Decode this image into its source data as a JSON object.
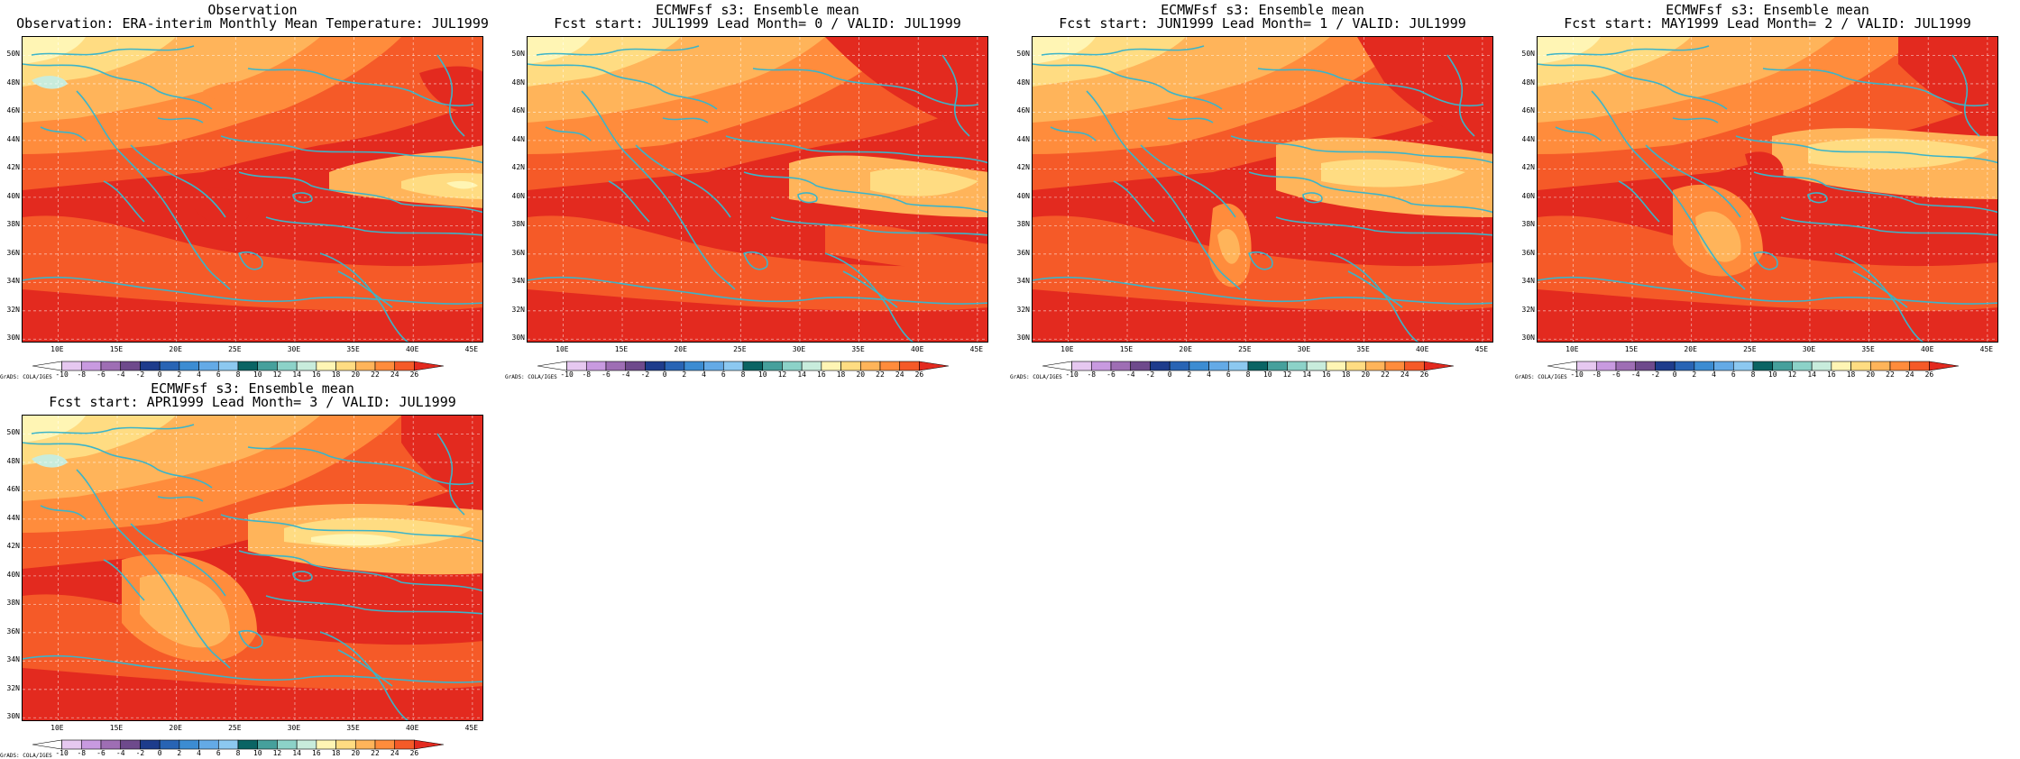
{
  "panels": [
    {
      "id": "obs",
      "title_line1": "Observation",
      "title_line2": "Observation: ERA-interim Monthly Mean Temperature: JUL1999",
      "variant": 0
    },
    {
      "id": "lead0",
      "title_line1": "ECMWFsf s3: Ensemble mean",
      "title_line2": "Fcst start: JUL1999  Lead Month= 0 / VALID: JUL1999",
      "variant": 1
    },
    {
      "id": "lead1",
      "title_line1": "ECMWFsf s3: Ensemble mean",
      "title_line2": "Fcst start: JUN1999  Lead Month= 1 / VALID: JUL1999",
      "variant": 2
    },
    {
      "id": "lead2",
      "title_line1": "ECMWFsf s3: Ensemble mean",
      "title_line2": "Fcst start: MAY1999  Lead Month= 2 / VALID: JUL1999",
      "variant": 3
    },
    {
      "id": "lead3",
      "title_line1": "ECMWFsf s3: Ensemble mean",
      "title_line2": "Fcst start: APR1999  Lead Month= 3 / VALID: JUL1999",
      "variant": 4
    }
  ],
  "lat_labels": [
    "30N",
    "32N",
    "34N",
    "36N",
    "38N",
    "40N",
    "42N",
    "44N",
    "46N",
    "48N",
    "50N"
  ],
  "lon_labels": [
    "10E",
    "15E",
    "20E",
    "25E",
    "30E",
    "35E",
    "40E",
    "45E"
  ],
  "map_extent": {
    "lon": [
      7,
      46
    ],
    "lat": [
      29.7,
      51.3
    ]
  },
  "credit": "GrADS: COLA/IGES",
  "colorbar": {
    "levels": [
      "-10",
      "-8",
      "-6",
      "-4",
      "-2",
      "0",
      "2",
      "4",
      "6",
      "8",
      "10",
      "12",
      "14",
      "16",
      "18",
      "20",
      "22",
      "24",
      "26"
    ],
    "colors": [
      "#ffffff",
      "#e6c8f0",
      "#c89ae0",
      "#9e6eb4",
      "#6e4a8c",
      "#1e3c8c",
      "#2864b4",
      "#3c8cd2",
      "#64aae6",
      "#8cc8f0",
      "#0a6464",
      "#46a09c",
      "#8cd2c8",
      "#c8ecdc",
      "#fff5b4",
      "#ffdc82",
      "#ffb45a",
      "#ff8c3c",
      "#f55a28",
      "#e32a1f"
    ]
  },
  "colors": {
    "land_outline": "#3cb4c8",
    "grid": "#ffffff",
    "warmest": "#e32a1f"
  }
}
